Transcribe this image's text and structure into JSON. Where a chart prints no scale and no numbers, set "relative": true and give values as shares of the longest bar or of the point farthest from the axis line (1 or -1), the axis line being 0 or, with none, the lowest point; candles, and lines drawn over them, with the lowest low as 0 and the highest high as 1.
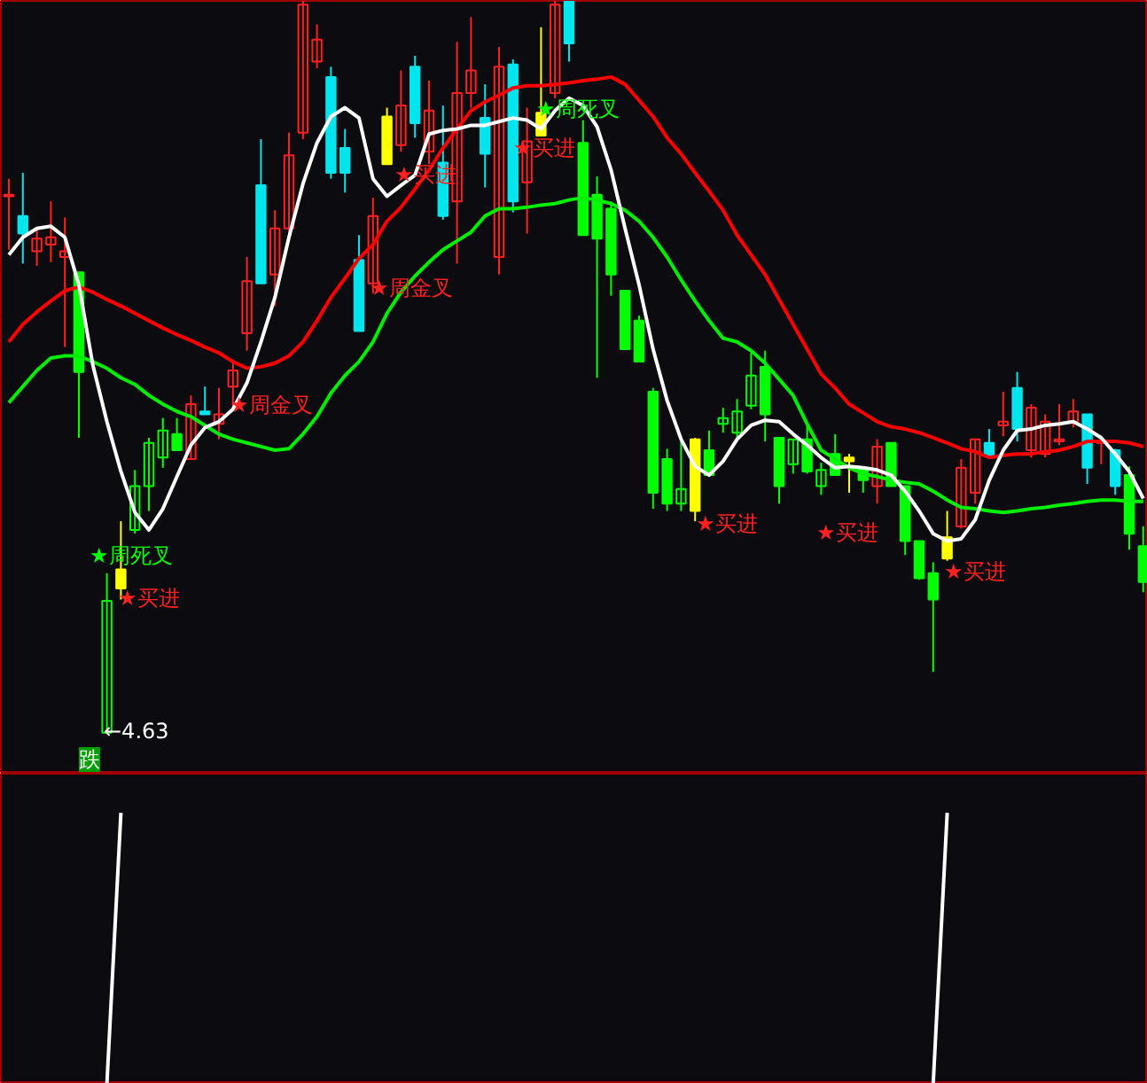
{
  "chart_data": [
    {
      "type": "candlestick",
      "relative": true,
      "categories": [
        null,
        null,
        null,
        null,
        null,
        null,
        null,
        null,
        null,
        null,
        null,
        null,
        null,
        null,
        null,
        null,
        null,
        null,
        null,
        null,
        null,
        null,
        null,
        null,
        null,
        null,
        null,
        null,
        null,
        null,
        null,
        null,
        null,
        null,
        null,
        null,
        null,
        null,
        null,
        null,
        null,
        null,
        null,
        null,
        null,
        null,
        null,
        null,
        null,
        null,
        null,
        null,
        null,
        null,
        null,
        null,
        null,
        null,
        null,
        null,
        null,
        null,
        null,
        null,
        null,
        null,
        null,
        null,
        null,
        null,
        null,
        null,
        null,
        null,
        null,
        null,
        null,
        null,
        null,
        null,
        null,
        null
      ],
      "ohlc": [
        [
          0.735,
          0.757,
          0.66,
          0.733
        ],
        [
          0.706,
          0.765,
          0.641,
          0.682
        ],
        [
          0.658,
          0.689,
          0.638,
          0.675
        ],
        [
          0.667,
          0.726,
          0.643,
          0.677
        ],
        [
          0.65,
          0.704,
          0.527,
          0.658
        ],
        [
          0.629,
          0.629,
          0.403,
          0.493
        ],
        null,
        [
          0,
          0.218,
          0,
          0.18
        ],
        [
          0.223,
          0.289,
          0.182,
          0.197
        ],
        [
          0.277,
          0.359,
          0.272,
          0.337
        ],
        [
          0.337,
          0.403,
          0.303,
          0.396
        ],
        [
          0.376,
          0.43,
          0.362,
          0.413
        ],
        [
          0.408,
          0.43,
          0.386,
          0.386
        ],
        [
          0.374,
          0.461,
          0.374,
          0.449
        ],
        [
          0.439,
          0.473,
          0.435,
          0.435
        ],
        [
          0.422,
          0.471,
          0.401,
          0.435
        ],
        [
          0.473,
          0.51,
          0.442,
          0.495
        ],
        [
          0.546,
          0.65,
          0.522,
          0.617
        ],
        [
          0.748,
          0.811,
          0.614,
          0.614
        ],
        [
          0.626,
          0.714,
          0.583,
          0.689
        ],
        [
          0.689,
          0.82,
          0.677,
          0.789
        ],
        [
          0.82,
          1,
          0.811,
          0.995
        ],
        [
          0.917,
          0.968,
          0.908,
          0.947
        ],
        [
          0.896,
          0.91,
          0.757,
          0.765
        ],
        [
          0.799,
          0.825,
          0.738,
          0.765
        ],
        [
          0.646,
          0.68,
          0.549,
          0.549
        ],
        [
          0.614,
          0.731,
          0.6,
          0.706
        ],
        [
          0.842,
          0.854,
          0.777,
          0.777
        ],
        [
          0.803,
          0.905,
          0.794,
          0.857
        ],
        [
          0.91,
          0.925,
          0.813,
          0.833
        ],
        [
          0.794,
          0.891,
          0.777,
          0.85
        ],
        [
          0.779,
          0.857,
          0.701,
          0.706
        ],
        [
          0.726,
          0.944,
          0.641,
          0.874
        ],
        [
          0.874,
          0.978,
          0.854,
          0.905
        ],
        [
          0.84,
          0.886,
          0.745,
          0.791
        ],
        [
          0.65,
          0.937,
          0.626,
          0.91
        ],
        [
          0.913,
          0.92,
          0.711,
          0.726
        ],
        [
          0.752,
          0.854,
          0.682,
          0.808
        ],
        [
          0.847,
          0.964,
          0.816,
          0.816
        ],
        [
          0.874,
          1,
          0.867,
          0.995
        ],
        [
          1,
          1,
          0.917,
          0.942
        ],
        [
          0.806,
          0.837,
          0.68,
          0.68
        ],
        [
          0.735,
          0.76,
          0.485,
          0.675
        ],
        [
          0.716,
          0.726,
          0.597,
          0.626
        ],
        [
          0.604,
          0.604,
          0.524,
          0.524
        ],
        [
          0.563,
          0.57,
          0.507,
          0.507
        ],
        [
          0.466,
          0.471,
          0.306,
          0.328
        ],
        [
          0.374,
          0.388,
          0.303,
          0.313
        ],
        [
          0.313,
          0.401,
          0.303,
          0.333
        ],
        [
          0.401,
          0.403,
          0.289,
          0.303
        ],
        [
          0.386,
          0.413,
          0.35,
          0.352
        ],
        [
          0.422,
          0.444,
          0.41,
          0.43
        ],
        [
          0.41,
          0.456,
          0.398,
          0.439
        ],
        [
          0.447,
          0.519,
          0.442,
          0.488
        ],
        [
          0.5,
          0.522,
          0.398,
          0.435
        ],
        [
          0.403,
          0.403,
          0.313,
          0.337
        ],
        [
          0.367,
          0.401,
          0.354,
          0.401
        ],
        [
          0.401,
          0.42,
          0.354,
          0.357
        ],
        [
          0.337,
          0.369,
          0.325,
          0.359
        ],
        [
          0.381,
          0.408,
          0.352,
          0.352
        ],
        [
          0.376,
          0.381,
          0.328,
          0.371
        ],
        [
          0.362,
          0.364,
          0.328,
          0.345
        ],
        [
          0.337,
          0.401,
          0.313,
          0.391
        ],
        [
          0.396,
          0.396,
          0.337,
          0.337
        ],
        [
          0.337,
          0.337,
          0.243,
          0.262
        ],
        [
          0.262,
          0.262,
          0.209,
          0.211
        ],
        [
          0.218,
          0.233,
          0.083,
          0.182
        ],
        [
          0.267,
          0.303,
          0.235,
          0.238
        ],
        [
          0.282,
          0.374,
          0.279,
          0.362
        ],
        [
          0.328,
          0.401,
          0.313,
          0.401
        ],
        [
          0.396,
          0.415,
          0.379,
          0.379
        ],
        [
          0.42,
          0.466,
          0.405,
          0.425
        ],
        [
          0.471,
          0.493,
          0.398,
          0.415
        ],
        [
          0.386,
          0.449,
          0.376,
          0.444
        ],
        [
          0.381,
          0.435,
          0.376,
          0.425
        ],
        [
          0.398,
          0.449,
          0.393,
          0.401
        ],
        [
          0.425,
          0.456,
          0.417,
          0.439
        ],
        [
          0.435,
          0.435,
          0.34,
          0.362
        ],
        [
          0.396,
          0.401,
          0.367,
          0.398
        ],
        [
          0.386,
          0.388,
          0.325,
          0.337
        ],
        [
          0.352,
          0.364,
          0.25,
          0.272
        ],
        [
          0.255,
          0.282,
          0.192,
          0.206
        ]
      ],
      "colors": [
        "#ff2020",
        "#00e5ee",
        "#ff2020",
        "#ff2020",
        "#ff2020",
        "#00ff00",
        null,
        "#00ff00",
        "#ffff00",
        "#00ff00",
        "#00ff00",
        "#00ff00",
        "#00ff00",
        "#ff2020",
        "#00e5ee",
        "#ff2020",
        "#ff2020",
        "#ff2020",
        "#00e5ee",
        "#ff2020",
        "#ff2020",
        "#ff2020",
        "#ff2020",
        "#00e5ee",
        "#00e5ee",
        "#00e5ee",
        "#ff2020",
        "#ffff00",
        "#ff2020",
        "#00e5ee",
        "#ff2020",
        "#00e5ee",
        "#ff2020",
        "#ff2020",
        "#00e5ee",
        "#ff2020",
        "#00e5ee",
        "#ff2020",
        "#ffff00",
        "#ff2020",
        "#00e5ee",
        "#00ff00",
        "#00ff00",
        "#00ff00",
        "#00ff00",
        "#00ff00",
        "#00ff00",
        "#00ff00",
        "#00ff00",
        "#ffff00",
        "#00ff00",
        "#00ff00",
        "#00ff00",
        "#00ff00",
        "#00ff00",
        "#00ff00",
        "#00ff00",
        "#00ff00",
        "#00ff00",
        "#00ff00",
        "#ffff00",
        "#00ff00",
        "#ff2020",
        "#00ff00",
        "#00ff00",
        "#00ff00",
        "#00ff00",
        "#ffff00",
        "#ff2020",
        "#ff2020",
        "#00e5ee",
        "#ff2020",
        "#00e5ee",
        "#ff2020",
        "#ff2020",
        "#ff2020",
        "#ff2020",
        "#00e5ee",
        "#ff2020",
        "#00e5ee",
        "#00ff00",
        "#00ff00"
      ],
      "series": [
        {
          "type": "line",
          "color": "#ff0000",
          "values": [
            0.534,
            0.558,
            0.575,
            0.59,
            0.604,
            0.609,
            0.602,
            0.592,
            0.583,
            0.573,
            0.563,
            0.553,
            0.544,
            0.536,
            0.527,
            0.519,
            0.507,
            0.498,
            0.5,
            0.505,
            0.515,
            0.534,
            0.563,
            0.595,
            0.621,
            0.648,
            0.667,
            0.699,
            0.718,
            0.743,
            0.769,
            0.799,
            0.825,
            0.85,
            0.862,
            0.871,
            0.881,
            0.884,
            0.884,
            0.886,
            0.888,
            0.891,
            0.893,
            0.896,
            0.886,
            0.864,
            0.842,
            0.813,
            0.791,
            0.765,
            0.74,
            0.714,
            0.68,
            0.653,
            0.626,
            0.592,
            0.558,
            0.524,
            0.49,
            0.471,
            0.449,
            0.437,
            0.425,
            0.418,
            0.415,
            0.41,
            0.403,
            0.396,
            0.388,
            0.384,
            0.376,
            0.379,
            0.381,
            0.381,
            0.384,
            0.386,
            0.391,
            0.398,
            0.398,
            0.398,
            0.396,
            0.391
          ]
        },
        {
          "type": "line",
          "color": "#00ee00",
          "values": [
            0.451,
            0.473,
            0.495,
            0.512,
            0.515,
            0.515,
            0.507,
            0.498,
            0.485,
            0.476,
            0.461,
            0.449,
            0.439,
            0.432,
            0.42,
            0.408,
            0.401,
            0.396,
            0.391,
            0.386,
            0.388,
            0.408,
            0.432,
            0.464,
            0.488,
            0.507,
            0.534,
            0.573,
            0.602,
            0.624,
            0.643,
            0.66,
            0.672,
            0.684,
            0.706,
            0.716,
            0.716,
            0.718,
            0.721,
            0.723,
            0.728,
            0.731,
            0.728,
            0.723,
            0.714,
            0.699,
            0.677,
            0.65,
            0.619,
            0.59,
            0.563,
            0.539,
            0.534,
            0.522,
            0.505,
            0.483,
            0.461,
            0.422,
            0.386,
            0.374,
            0.362,
            0.354,
            0.35,
            0.345,
            0.342,
            0.34,
            0.33,
            0.318,
            0.308,
            0.306,
            0.303,
            0.301,
            0.303,
            0.306,
            0.308,
            0.311,
            0.313,
            0.316,
            0.318,
            0.318,
            0.316,
            0.316
          ]
        },
        {
          "type": "line",
          "color": "#ffffff",
          "values": [
            0.653,
            0.677,
            0.689,
            0.692,
            0.677,
            0.612,
            0.502,
            0.425,
            0.357,
            0.301,
            0.277,
            0.306,
            0.35,
            0.393,
            0.417,
            0.425,
            0.442,
            0.478,
            0.534,
            0.595,
            0.677,
            0.75,
            0.806,
            0.842,
            0.854,
            0.84,
            0.757,
            0.733,
            0.748,
            0.762,
            0.818,
            0.823,
            0.825,
            0.83,
            0.83,
            0.835,
            0.84,
            0.837,
            0.825,
            0.85,
            0.867,
            0.857,
            0.828,
            0.769,
            0.689,
            0.612,
            0.524,
            0.454,
            0.401,
            0.364,
            0.352,
            0.371,
            0.401,
            0.42,
            0.427,
            0.425,
            0.408,
            0.393,
            0.376,
            0.362,
            0.364,
            0.362,
            0.359,
            0.352,
            0.33,
            0.303,
            0.272,
            0.262,
            0.265,
            0.291,
            0.345,
            0.386,
            0.413,
            0.415,
            0.42,
            0.422,
            0.425,
            0.415,
            0.403,
            0.381,
            0.357,
            0.32
          ]
        }
      ],
      "annotations": [
        "★周死叉",
        "★买进",
        "★周金叉",
        "★周金叉",
        "★买进",
        "★买进",
        "★周死叉",
        "★买进",
        "★买进",
        "★买进",
        "←4.63",
        "跌"
      ]
    },
    {
      "type": "line",
      "relative": true,
      "categories": [
        null,
        null,
        null,
        null,
        null,
        null,
        null,
        null,
        null,
        null,
        null,
        null,
        null,
        null,
        null,
        null,
        null,
        null,
        null,
        null,
        null,
        null,
        null,
        null,
        null,
        null,
        null,
        null,
        null,
        null,
        null,
        null,
        null,
        null,
        null,
        null,
        null,
        null,
        null,
        null,
        null,
        null,
        null,
        null,
        null,
        null,
        null,
        null,
        null,
        null,
        null,
        null,
        null,
        null,
        null,
        null,
        null,
        null,
        null,
        null,
        null,
        null,
        null,
        null,
        null,
        null,
        null,
        null,
        null,
        null,
        null,
        null,
        null,
        null,
        null,
        null,
        null,
        null,
        null,
        null,
        null,
        null
      ],
      "series": [
        {
          "color": "#ffffff",
          "values": [
            null,
            null,
            null,
            null,
            null,
            null,
            null,
            0,
            1,
            null,
            null,
            null,
            null,
            null,
            null,
            null,
            null,
            null,
            null,
            null,
            null,
            null,
            null,
            null,
            null,
            null,
            null,
            null,
            null,
            null,
            null,
            null,
            null,
            null,
            null,
            null,
            null,
            null,
            null,
            null,
            null,
            null,
            null,
            null,
            null,
            null,
            null,
            null,
            null,
            null,
            null,
            null,
            null,
            null,
            null,
            null,
            null,
            null,
            null,
            null,
            null,
            null,
            null,
            null,
            null,
            null,
            null,
            null,
            null,
            null,
            null,
            null,
            null,
            null,
            null,
            null,
            null,
            null,
            null,
            null,
            null,
            null
          ]
        },
        {
          "color": "#ffffff",
          "values": [
            null,
            null,
            null,
            null,
            null,
            null,
            null,
            null,
            null,
            null,
            null,
            null,
            null,
            null,
            null,
            null,
            null,
            null,
            null,
            null,
            null,
            null,
            null,
            null,
            null,
            null,
            null,
            null,
            null,
            null,
            null,
            null,
            null,
            null,
            null,
            null,
            null,
            null,
            null,
            null,
            null,
            null,
            null,
            null,
            null,
            null,
            null,
            null,
            null,
            null,
            null,
            null,
            null,
            null,
            null,
            null,
            null,
            null,
            null,
            null,
            null,
            null,
            null,
            null,
            null,
            null,
            0,
            1,
            null,
            null,
            null,
            null,
            null,
            null,
            null,
            null,
            null,
            null,
            null,
            null,
            null,
            null
          ]
        }
      ]
    }
  ]
}
